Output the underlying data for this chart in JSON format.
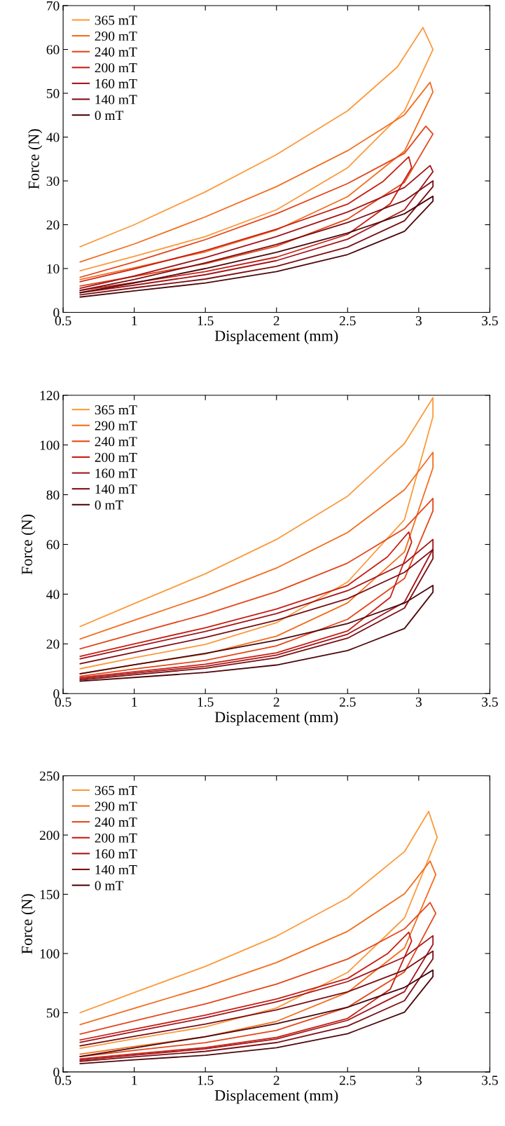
{
  "chart_data": [
    {
      "type": "line",
      "xlabel": "Displacement (mm)",
      "ylabel": "Force (N)",
      "xlim": [
        0.5,
        3.5
      ],
      "xticks": [
        0.5,
        1,
        1.5,
        2,
        2.5,
        3,
        3.5
      ],
      "ylim": [
        0,
        70
      ],
      "yticks": [
        0,
        10,
        20,
        30,
        40,
        50,
        60,
        70
      ],
      "legend": "top left",
      "grid": false,
      "series": [
        {
          "name": "365 mT",
          "color": "#fb9a3c",
          "x": [
            0.62,
            1,
            1.5,
            2,
            2.5,
            2.85,
            3.03,
            3.1,
            2.9,
            2.5,
            2,
            1.5,
            1,
            0.62
          ],
          "values": [
            15,
            20,
            27.5,
            36,
            46,
            56,
            65,
            60,
            46,
            33,
            23.4,
            17.3,
            12.8,
            9.5
          ]
        },
        {
          "name": "290 mT",
          "color": "#f36d1c",
          "x": [
            0.62,
            1,
            1.5,
            2,
            2.5,
            2.9,
            3.08,
            3.1,
            2.9,
            2.5,
            2,
            1.5,
            1,
            0.62
          ],
          "values": [
            11.5,
            15.6,
            21.8,
            28.7,
            36.9,
            45.1,
            52.5,
            50.3,
            36.8,
            26.4,
            18.8,
            13.8,
            10.2,
            7.5
          ]
        },
        {
          "name": "240 mT",
          "color": "#e4461a",
          "x": [
            0.62,
            1,
            1.5,
            2,
            2.5,
            2.9,
            3.05,
            3.1,
            2.9,
            2.5,
            2,
            1.5,
            1,
            0.62
          ],
          "values": [
            8,
            11.5,
            16.6,
            22.5,
            29.4,
            36.3,
            42.5,
            40.7,
            29.7,
            21.3,
            15.1,
            11.1,
            8.2,
            6
          ]
        },
        {
          "name": "200 mT",
          "color": "#c81e12",
          "x": [
            0.62,
            1,
            1.5,
            2,
            2.5,
            2.75,
            2.93,
            2.95,
            2.8,
            2.5,
            2,
            1.5,
            1,
            0.62
          ],
          "values": [
            7,
            9.9,
            14.1,
            19,
            24.7,
            29.9,
            35.5,
            33,
            24.8,
            17.8,
            12.6,
            9.3,
            6.8,
            5
          ]
        },
        {
          "name": "160 mT",
          "color": "#a3141a",
          "x": [
            0.62,
            1,
            1.5,
            2,
            2.5,
            2.9,
            3.08,
            3.1,
            2.9,
            2.5,
            2,
            1.5,
            1,
            0.62
          ],
          "values": [
            5.5,
            8.3,
            12.5,
            17.3,
            22.9,
            28.5,
            33.5,
            32.1,
            23.4,
            16.7,
            11.8,
            8.6,
            6.2,
            4.5
          ]
        },
        {
          "name": "140 mT",
          "color": "#7a0e12",
          "x": [
            0.62,
            1,
            1.5,
            2,
            2.5,
            2.9,
            3.1,
            3.1,
            2.9,
            2.5,
            2,
            1.5,
            1,
            0.62
          ],
          "values": [
            5,
            7.5,
            11.3,
            15.5,
            20.5,
            25.5,
            30,
            28.7,
            20.9,
            14.9,
            10.5,
            7.6,
            5.6,
            4
          ]
        },
        {
          "name": "0 mT",
          "color": "#4c080c",
          "x": [
            0.62,
            1,
            1.5,
            2,
            2.5,
            2.9,
            3.1,
            3.1,
            2.9,
            2.5,
            2,
            1.5,
            1,
            0.62
          ],
          "values": [
            4.5,
            6.7,
            10,
            13.7,
            18.1,
            22.5,
            26.5,
            25.4,
            18.5,
            13.2,
            9.3,
            6.7,
            4.9,
            3.5
          ]
        }
      ]
    },
    {
      "type": "line",
      "xlabel": "Displacement (mm)",
      "ylabel": "Force (N)",
      "xlim": [
        0.5,
        3.5
      ],
      "xticks": [
        0.5,
        1,
        1.5,
        2,
        2.5,
        3,
        3.5
      ],
      "ylim": [
        0,
        120
      ],
      "yticks": [
        0,
        20,
        40,
        60,
        80,
        100,
        120
      ],
      "legend": "top left",
      "grid": false,
      "series": [
        {
          "name": "365 mT",
          "color": "#fb9a3c",
          "x": [
            0.62,
            1,
            1.5,
            2,
            2.5,
            2.9,
            3.1,
            3.1,
            2.9,
            2.5,
            2,
            1.5,
            1,
            0.62
          ],
          "values": [
            27,
            36.2,
            48.2,
            62,
            79.4,
            100.6,
            119,
            111.4,
            70,
            44.9,
            28.5,
            19.8,
            14.4,
            10
          ]
        },
        {
          "name": "290 mT",
          "color": "#f36d1c",
          "x": [
            0.62,
            1,
            1.5,
            2,
            2.5,
            2.9,
            3.1,
            3.1,
            2.9,
            2.5,
            2,
            1.5,
            1,
            0.62
          ],
          "values": [
            22,
            29.5,
            39.3,
            50.5,
            64.8,
            82,
            97,
            90.8,
            57,
            36.5,
            23.1,
            16,
            11.6,
            8
          ]
        },
        {
          "name": "240 mT",
          "color": "#e4461a",
          "x": [
            0.62,
            1,
            1.5,
            2,
            2.5,
            2.9,
            3.1,
            3.1,
            2.9,
            2.5,
            2,
            1.5,
            1,
            0.62
          ],
          "values": [
            18,
            24.1,
            31.9,
            41,
            52.5,
            66.4,
            78.5,
            73.5,
            46.3,
            29.9,
            19.2,
            13.4,
            9.9,
            7
          ]
        },
        {
          "name": "200 mT",
          "color": "#c81e12",
          "x": [
            0.62,
            1,
            1.5,
            2,
            2.5,
            2.78,
            2.93,
            2.95,
            2.8,
            2.5,
            2,
            1.5,
            1,
            0.62
          ],
          "values": [
            15,
            20,
            26.5,
            34,
            43.5,
            55,
            65,
            60.9,
            38.7,
            25.2,
            16.4,
            11.8,
            8.8,
            6.5
          ]
        },
        {
          "name": "160 mT",
          "color": "#a3141a",
          "x": [
            0.62,
            1,
            1.5,
            2,
            2.5,
            2.9,
            3.1,
            3.1,
            2.9,
            2.5,
            2,
            1.5,
            1,
            0.62
          ],
          "values": [
            14,
            18.8,
            25,
            32.2,
            41.4,
            52.4,
            62,
            58.1,
            36.8,
            23.9,
            15.5,
            11,
            8.2,
            6
          ]
        },
        {
          "name": "140 mT",
          "color": "#7a0e12",
          "x": [
            0.62,
            1,
            1.5,
            2,
            2.5,
            2.9,
            3.1,
            3.1,
            2.9,
            2.5,
            2,
            1.5,
            1,
            0.62
          ],
          "values": [
            12,
            16.6,
            22.6,
            29.5,
            38.2,
            48.8,
            58,
            54.3,
            34.4,
            22.3,
            14.4,
            10.2,
            7.6,
            5.5
          ]
        },
        {
          "name": "0 mT",
          "color": "#4c080c",
          "x": [
            0.62,
            1,
            1.5,
            2,
            2.5,
            2.9,
            3.1,
            3.1,
            2.9,
            2.5,
            2,
            1.5,
            1,
            0.62
          ],
          "values": [
            8,
            11.6,
            16.2,
            21.5,
            28.2,
            36.4,
            43.5,
            40.8,
            26.2,
            17.3,
            11.5,
            8.5,
            6.5,
            5
          ]
        }
      ]
    },
    {
      "type": "line",
      "xlabel": "Displacement (mm)",
      "ylabel": "Force (N)",
      "xlim": [
        0.5,
        3.5
      ],
      "xticks": [
        0.5,
        1,
        1.5,
        2,
        2.5,
        3,
        3.5
      ],
      "ylim": [
        0,
        250
      ],
      "yticks": [
        0,
        50,
        100,
        150,
        200,
        250
      ],
      "legend": "top left",
      "grid": false,
      "series": [
        {
          "name": "365 mT",
          "color": "#fb9a3c",
          "x": [
            0.62,
            1,
            1.5,
            2,
            2.5,
            2.9,
            3.07,
            3.13,
            2.9,
            2.5,
            2,
            1.5,
            1,
            0.62
          ],
          "values": [
            50,
            67,
            89.1,
            114.6,
            146.9,
            186,
            220,
            198,
            130,
            84,
            54,
            38,
            28,
            20
          ]
        },
        {
          "name": "290 mT",
          "color": "#f36d1c",
          "x": [
            0.62,
            1,
            1.5,
            2,
            2.5,
            2.9,
            3.08,
            3.12,
            2.9,
            2.5,
            2,
            1.5,
            1,
            0.62
          ],
          "values": [
            40,
            53.8,
            71.7,
            92.4,
            118.7,
            150.4,
            178,
            166.6,
            104.7,
            67.2,
            42.7,
            29.7,
            21.5,
            15
          ]
        },
        {
          "name": "240 mT",
          "color": "#e4461a",
          "x": [
            0.62,
            1,
            1.5,
            2,
            2.5,
            2.9,
            3.08,
            3.12,
            2.9,
            2.5,
            2,
            1.5,
            1,
            0.62
          ],
          "values": [
            32,
            43.1,
            57.5,
            74.2,
            95.3,
            120.8,
            143,
            133.9,
            84.5,
            54.6,
            35.1,
            24.7,
            18.2,
            13
          ]
        },
        {
          "name": "200 mT",
          "color": "#c81e12",
          "x": [
            0.62,
            1,
            1.5,
            2,
            2.5,
            2.78,
            2.93,
            2.95,
            2.8,
            2.5,
            2,
            1.5,
            1,
            0.62
          ],
          "values": [
            27,
            36.1,
            47.9,
            61.6,
            78.9,
            99.8,
            118,
            110.5,
            69.9,
            45.2,
            29.2,
            20.6,
            15.3,
            11
          ]
        },
        {
          "name": "160 mT",
          "color": "#a3141a",
          "x": [
            0.62,
            1,
            1.5,
            2,
            2.5,
            2.9,
            3.1,
            3.1,
            2.9,
            2.5,
            2,
            1.5,
            1,
            0.62
          ],
          "values": [
            25,
            34,
            45.7,
            59.2,
            76.3,
            97,
            115,
            107.7,
            67.8,
            43.6,
            27.9,
            19.5,
            14.2,
            10
          ]
        },
        {
          "name": "140 mT",
          "color": "#7a0e12",
          "x": [
            0.62,
            1,
            1.5,
            2,
            2.5,
            2.9,
            3.1,
            3.1,
            2.9,
            2.5,
            2,
            1.5,
            1,
            0.62
          ],
          "values": [
            22,
            30,
            40.4,
            52.4,
            67.6,
            86,
            102,
            95.5,
            60.2,
            38.8,
            24.8,
            17.4,
            12.7,
            9
          ]
        },
        {
          "name": "0 mT",
          "color": "#4c080c",
          "x": [
            0.62,
            1,
            1.5,
            2,
            2.5,
            2.9,
            3.1,
            3.1,
            2.9,
            2.5,
            2,
            1.5,
            1,
            0.62
          ],
          "values": [
            13,
            20.3,
            29.8,
            40.7,
            54.6,
            71.4,
            86,
            80.5,
            50.5,
            32.3,
            20.4,
            14.1,
            10.2,
            7
          ]
        }
      ]
    }
  ]
}
